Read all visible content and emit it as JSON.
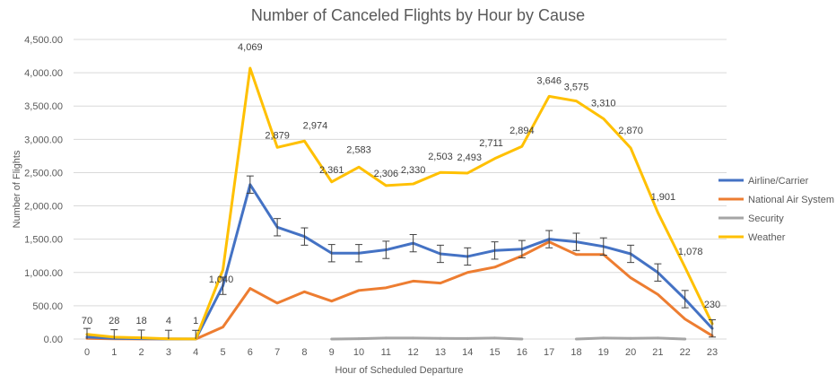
{
  "chart_data": {
    "type": "line",
    "title": "Number of Canceled Flights by Hour by Cause",
    "xlabel": "Hour of Scheduled Departure",
    "ylabel": "Number of Flights",
    "ylim": [
      0,
      4500
    ],
    "yticks": [
      0,
      500,
      1000,
      1500,
      2000,
      2500,
      3000,
      3500,
      4000,
      4500
    ],
    "ytick_labels": [
      "0.00",
      "500.00",
      "1,000.00",
      "1,500.00",
      "2,000.00",
      "2,500.00",
      "3,000.00",
      "3,500.00",
      "4,000.00",
      "4,500.00"
    ],
    "categories": [
      "0",
      "1",
      "2",
      "3",
      "4",
      "5",
      "6",
      "7",
      "8",
      "9",
      "10",
      "11",
      "12",
      "13",
      "14",
      "15",
      "16",
      "17",
      "18",
      "19",
      "20",
      "21",
      "22",
      "23"
    ],
    "grid": true,
    "legend": "right",
    "series": [
      {
        "name": "Airline/Carrier",
        "color": "#4472C4",
        "values": [
          30,
          10,
          5,
          2,
          1,
          800,
          2320,
          1680,
          1540,
          1290,
          1290,
          1340,
          1440,
          1280,
          1240,
          1330,
          1350,
          1500,
          1460,
          1390,
          1280,
          1000,
          600,
          160
        ],
        "error_bars": true,
        "error": 130
      },
      {
        "name": "National Air System",
        "color": "#ED7D31",
        "values": [
          10,
          3,
          2,
          1,
          0,
          180,
          760,
          540,
          710,
          570,
          730,
          770,
          870,
          840,
          1000,
          1080,
          1250,
          1460,
          1270,
          1270,
          920,
          670,
          300,
          50
        ]
      },
      {
        "name": "Security",
        "color": "#A5A5A5",
        "values": [
          0,
          0,
          0,
          0,
          0,
          0,
          0,
          0,
          0,
          0,
          5,
          15,
          15,
          10,
          8,
          15,
          0,
          0,
          0,
          15,
          10,
          15,
          0,
          0
        ]
      },
      {
        "name": "Weather",
        "color": "#FFC000",
        "values": [
          70,
          28,
          18,
          4,
          1,
          1040,
          4069,
          2879,
          2974,
          2361,
          2583,
          2306,
          2330,
          2503,
          2493,
          2711,
          2894,
          3646,
          3575,
          3310,
          2870,
          1901,
          1078,
          230
        ],
        "data_labels": [
          "70",
          "28",
          "18",
          "4",
          "1",
          "1,040",
          "4,069",
          "2,879",
          "2,974",
          "2,361",
          "2,583",
          "2,306",
          "2,330",
          "2,503",
          "2,493",
          "2,711",
          "2,894",
          "3,646",
          "3,575",
          "3,310",
          "2,870",
          "1,901",
          "1,078",
          "230"
        ]
      }
    ]
  }
}
